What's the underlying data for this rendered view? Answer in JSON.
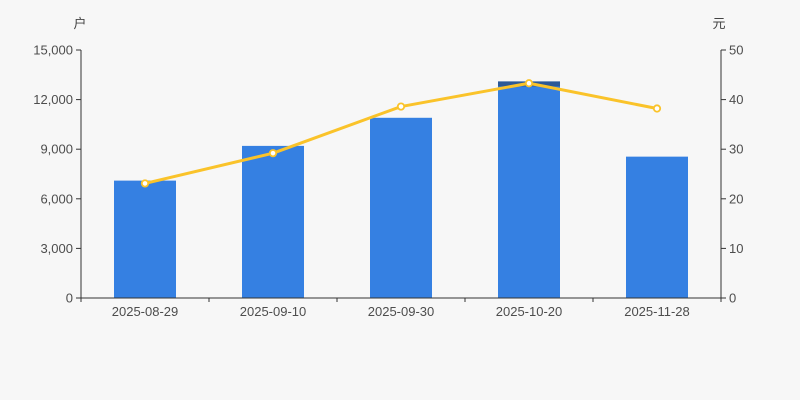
{
  "chart_data": {
    "type": "bar",
    "title": "",
    "categories": [
      "2025-08-29",
      "2025-09-10",
      "2025-09-30",
      "2025-10-20",
      "2025-11-28"
    ],
    "series": [
      {
        "name": "bar-series",
        "type": "bar",
        "axis": "left",
        "values": [
          7100,
          9200,
          10900,
          13100,
          8550
        ],
        "color": "#3580e2"
      },
      {
        "name": "line-series",
        "type": "line",
        "axis": "right",
        "values": [
          23.1,
          29.2,
          38.6,
          43.3,
          38.2
        ],
        "color": "#fac32a",
        "marker_fill": "#ffffff"
      }
    ],
    "left_axis": {
      "unit": "户",
      "min": 0,
      "max": 15000,
      "tick_interval": 3000,
      "tick_labels": [
        "0",
        "3,000",
        "6,000",
        "9,000",
        "12,000",
        "15,000"
      ]
    },
    "right_axis": {
      "unit": "元",
      "min": 0,
      "max": 50,
      "tick_interval": 10,
      "tick_labels": [
        "0",
        "10",
        "20",
        "30",
        "40",
        "50"
      ]
    },
    "style": {
      "background": "#f7f7f7",
      "axis_line_color": "#333333",
      "tick_label_color": "#4d4d4d",
      "bar_top_shadow_color": "rgba(35,50,75,0.5)",
      "grid": "off",
      "legend": "none"
    }
  }
}
